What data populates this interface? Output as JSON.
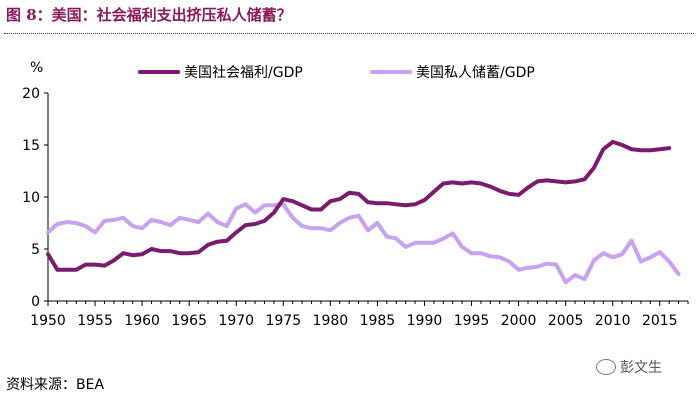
{
  "title": "图 8：美国：社会福利支出挤压私人储蓄？",
  "source": "资料来源：BEA",
  "watermark": "彭文生",
  "chart_data": {
    "type": "line",
    "ylabel": "%",
    "ylim": [
      0,
      20
    ],
    "yticks": [
      0,
      5,
      10,
      15,
      20
    ],
    "xlim": [
      1950,
      2018
    ],
    "xticks": [
      1950,
      1955,
      1960,
      1965,
      1970,
      1975,
      1980,
      1985,
      1990,
      1995,
      2000,
      2005,
      2010,
      2015
    ],
    "grid": false,
    "legend_position": "top",
    "series": [
      {
        "name": "美国社会福利/GDP",
        "color": "#7b1a6f",
        "x": [
          1950,
          1951,
          1952,
          1953,
          1954,
          1955,
          1956,
          1957,
          1958,
          1959,
          1960,
          1961,
          1962,
          1963,
          1964,
          1965,
          1966,
          1967,
          1968,
          1969,
          1970,
          1971,
          1972,
          1973,
          1974,
          1975,
          1976,
          1977,
          1978,
          1979,
          1980,
          1981,
          1982,
          1983,
          1984,
          1985,
          1986,
          1987,
          1988,
          1989,
          1990,
          1991,
          1992,
          1993,
          1994,
          1995,
          1996,
          1997,
          1998,
          1999,
          2000,
          2001,
          2002,
          2003,
          2004,
          2005,
          2006,
          2007,
          2008,
          2009,
          2010,
          2011,
          2012,
          2013,
          2014,
          2015,
          2016
        ],
        "values": [
          4.5,
          3.0,
          3.0,
          3.0,
          3.5,
          3.5,
          3.4,
          3.9,
          4.6,
          4.4,
          4.5,
          5.0,
          4.8,
          4.8,
          4.6,
          4.6,
          4.7,
          5.4,
          5.7,
          5.8,
          6.6,
          7.3,
          7.4,
          7.7,
          8.5,
          9.8,
          9.6,
          9.2,
          8.8,
          8.8,
          9.6,
          9.8,
          10.4,
          10.3,
          9.5,
          9.4,
          9.4,
          9.3,
          9.2,
          9.3,
          9.7,
          10.5,
          11.3,
          11.4,
          11.3,
          11.4,
          11.3,
          11.0,
          10.6,
          10.3,
          10.2,
          10.9,
          11.5,
          11.6,
          11.5,
          11.4,
          11.5,
          11.7,
          12.8,
          14.6,
          15.3,
          15.0,
          14.6,
          14.5,
          14.5,
          14.6,
          14.7
        ]
      },
      {
        "name": "美国私人储蓄/GDP",
        "color": "#c8a2f0",
        "x": [
          1950,
          1951,
          1952,
          1953,
          1954,
          1955,
          1956,
          1957,
          1958,
          1959,
          1960,
          1961,
          1962,
          1963,
          1964,
          1965,
          1966,
          1967,
          1968,
          1969,
          1970,
          1971,
          1972,
          1973,
          1974,
          1975,
          1976,
          1977,
          1978,
          1979,
          1980,
          1981,
          1982,
          1983,
          1984,
          1985,
          1986,
          1987,
          1988,
          1989,
          1990,
          1991,
          1992,
          1993,
          1994,
          1995,
          1996,
          1997,
          1998,
          1999,
          2000,
          2001,
          2002,
          2003,
          2004,
          2005,
          2006,
          2007,
          2008,
          2009,
          2010,
          2011,
          2012,
          2013,
          2014,
          2015,
          2016,
          2017
        ],
        "values": [
          6.6,
          7.4,
          7.6,
          7.5,
          7.2,
          6.6,
          7.7,
          7.8,
          8.0,
          7.2,
          7.0,
          7.8,
          7.6,
          7.3,
          8.0,
          7.8,
          7.6,
          8.4,
          7.6,
          7.2,
          8.9,
          9.3,
          8.5,
          9.2,
          9.2,
          9.3,
          8.0,
          7.2,
          7.0,
          7.0,
          6.8,
          7.5,
          8.0,
          8.2,
          6.8,
          7.5,
          6.2,
          6.0,
          5.2,
          5.6,
          5.6,
          5.6,
          6.0,
          6.5,
          5.2,
          4.6,
          4.6,
          4.3,
          4.2,
          3.8,
          3.0,
          3.2,
          3.3,
          3.6,
          3.5,
          1.8,
          2.5,
          2.1,
          3.9,
          4.6,
          4.2,
          4.5,
          5.8,
          3.8,
          4.2,
          4.7,
          3.8,
          2.6
        ]
      }
    ]
  }
}
